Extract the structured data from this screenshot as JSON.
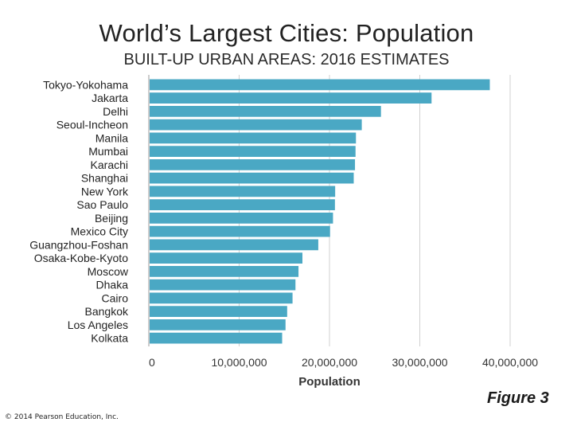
{
  "chart_data": {
    "type": "bar",
    "orientation": "horizontal",
    "title": "World’s Largest Cities: Population",
    "subtitle": "BUILT-UP URBAN AREAS: 2016 ESTIMATES",
    "xlabel": "Population",
    "ylabel": "",
    "xlim": [
      0,
      40000000
    ],
    "xticks": [
      0,
      10000000,
      20000000,
      30000000,
      40000000
    ],
    "xtick_labels": [
      "0",
      "10,000,000",
      "20,000,000",
      "30,000,000",
      "40,000,000"
    ],
    "grid": true,
    "bar_color": "#4aa8c4",
    "categories": [
      "Tokyo-Yokohama",
      "Jakarta",
      "Delhi",
      "Seoul-Incheon",
      "Manila",
      "Mumbai",
      "Karachi",
      "Shanghai",
      "New York",
      "Sao Paulo",
      "Beijing",
      "Mexico City",
      "Guangzhou-Foshan",
      "Osaka-Kobe-Kyoto",
      "Moscow",
      "Dhaka",
      "Cairo",
      "Bangkok",
      "Los Angeles",
      "Kolkata"
    ],
    "values": [
      37750000,
      31300000,
      25700000,
      23575000,
      22930000,
      22885000,
      22825000,
      22685000,
      20630000,
      20605000,
      20390000,
      20065000,
      18760000,
      17005000,
      16570000,
      16235000,
      15910000,
      15315000,
      15135000,
      14760000
    ]
  },
  "footer": {
    "copyright": "© 2014 Pearson Education, Inc.",
    "figure_label": "Figure 3"
  }
}
